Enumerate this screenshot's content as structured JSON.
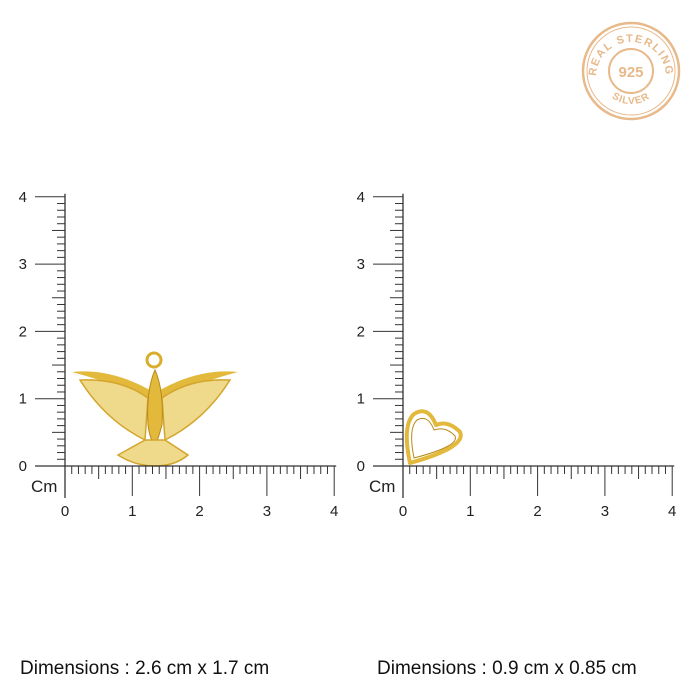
{
  "badge": {
    "top_text": "REAL STERLING",
    "center_text": "925",
    "bottom_text": "SILVER",
    "color": "#E8B98A"
  },
  "rulers": [
    {
      "unit_label": "Cm",
      "x_ticks": [
        "0",
        "1",
        "2",
        "3",
        "4"
      ],
      "y_ticks": [
        "0",
        "1",
        "2",
        "3",
        "4"
      ],
      "item": "bird pendant",
      "dimensions": "Dimensions : 2.6 cm x 1.7 cm"
    },
    {
      "unit_label": "Cm",
      "x_ticks": [
        "0",
        "1",
        "2",
        "3",
        "4"
      ],
      "y_ticks": [
        "0",
        "1",
        "2",
        "3",
        "4"
      ],
      "item": "heart charm",
      "dimensions": "Dimensions : 0.9 cm x 0.85 cm"
    }
  ],
  "colors": {
    "gold": "#E2B93B",
    "gold_dark": "#B8891C",
    "ruler": "#333333"
  }
}
